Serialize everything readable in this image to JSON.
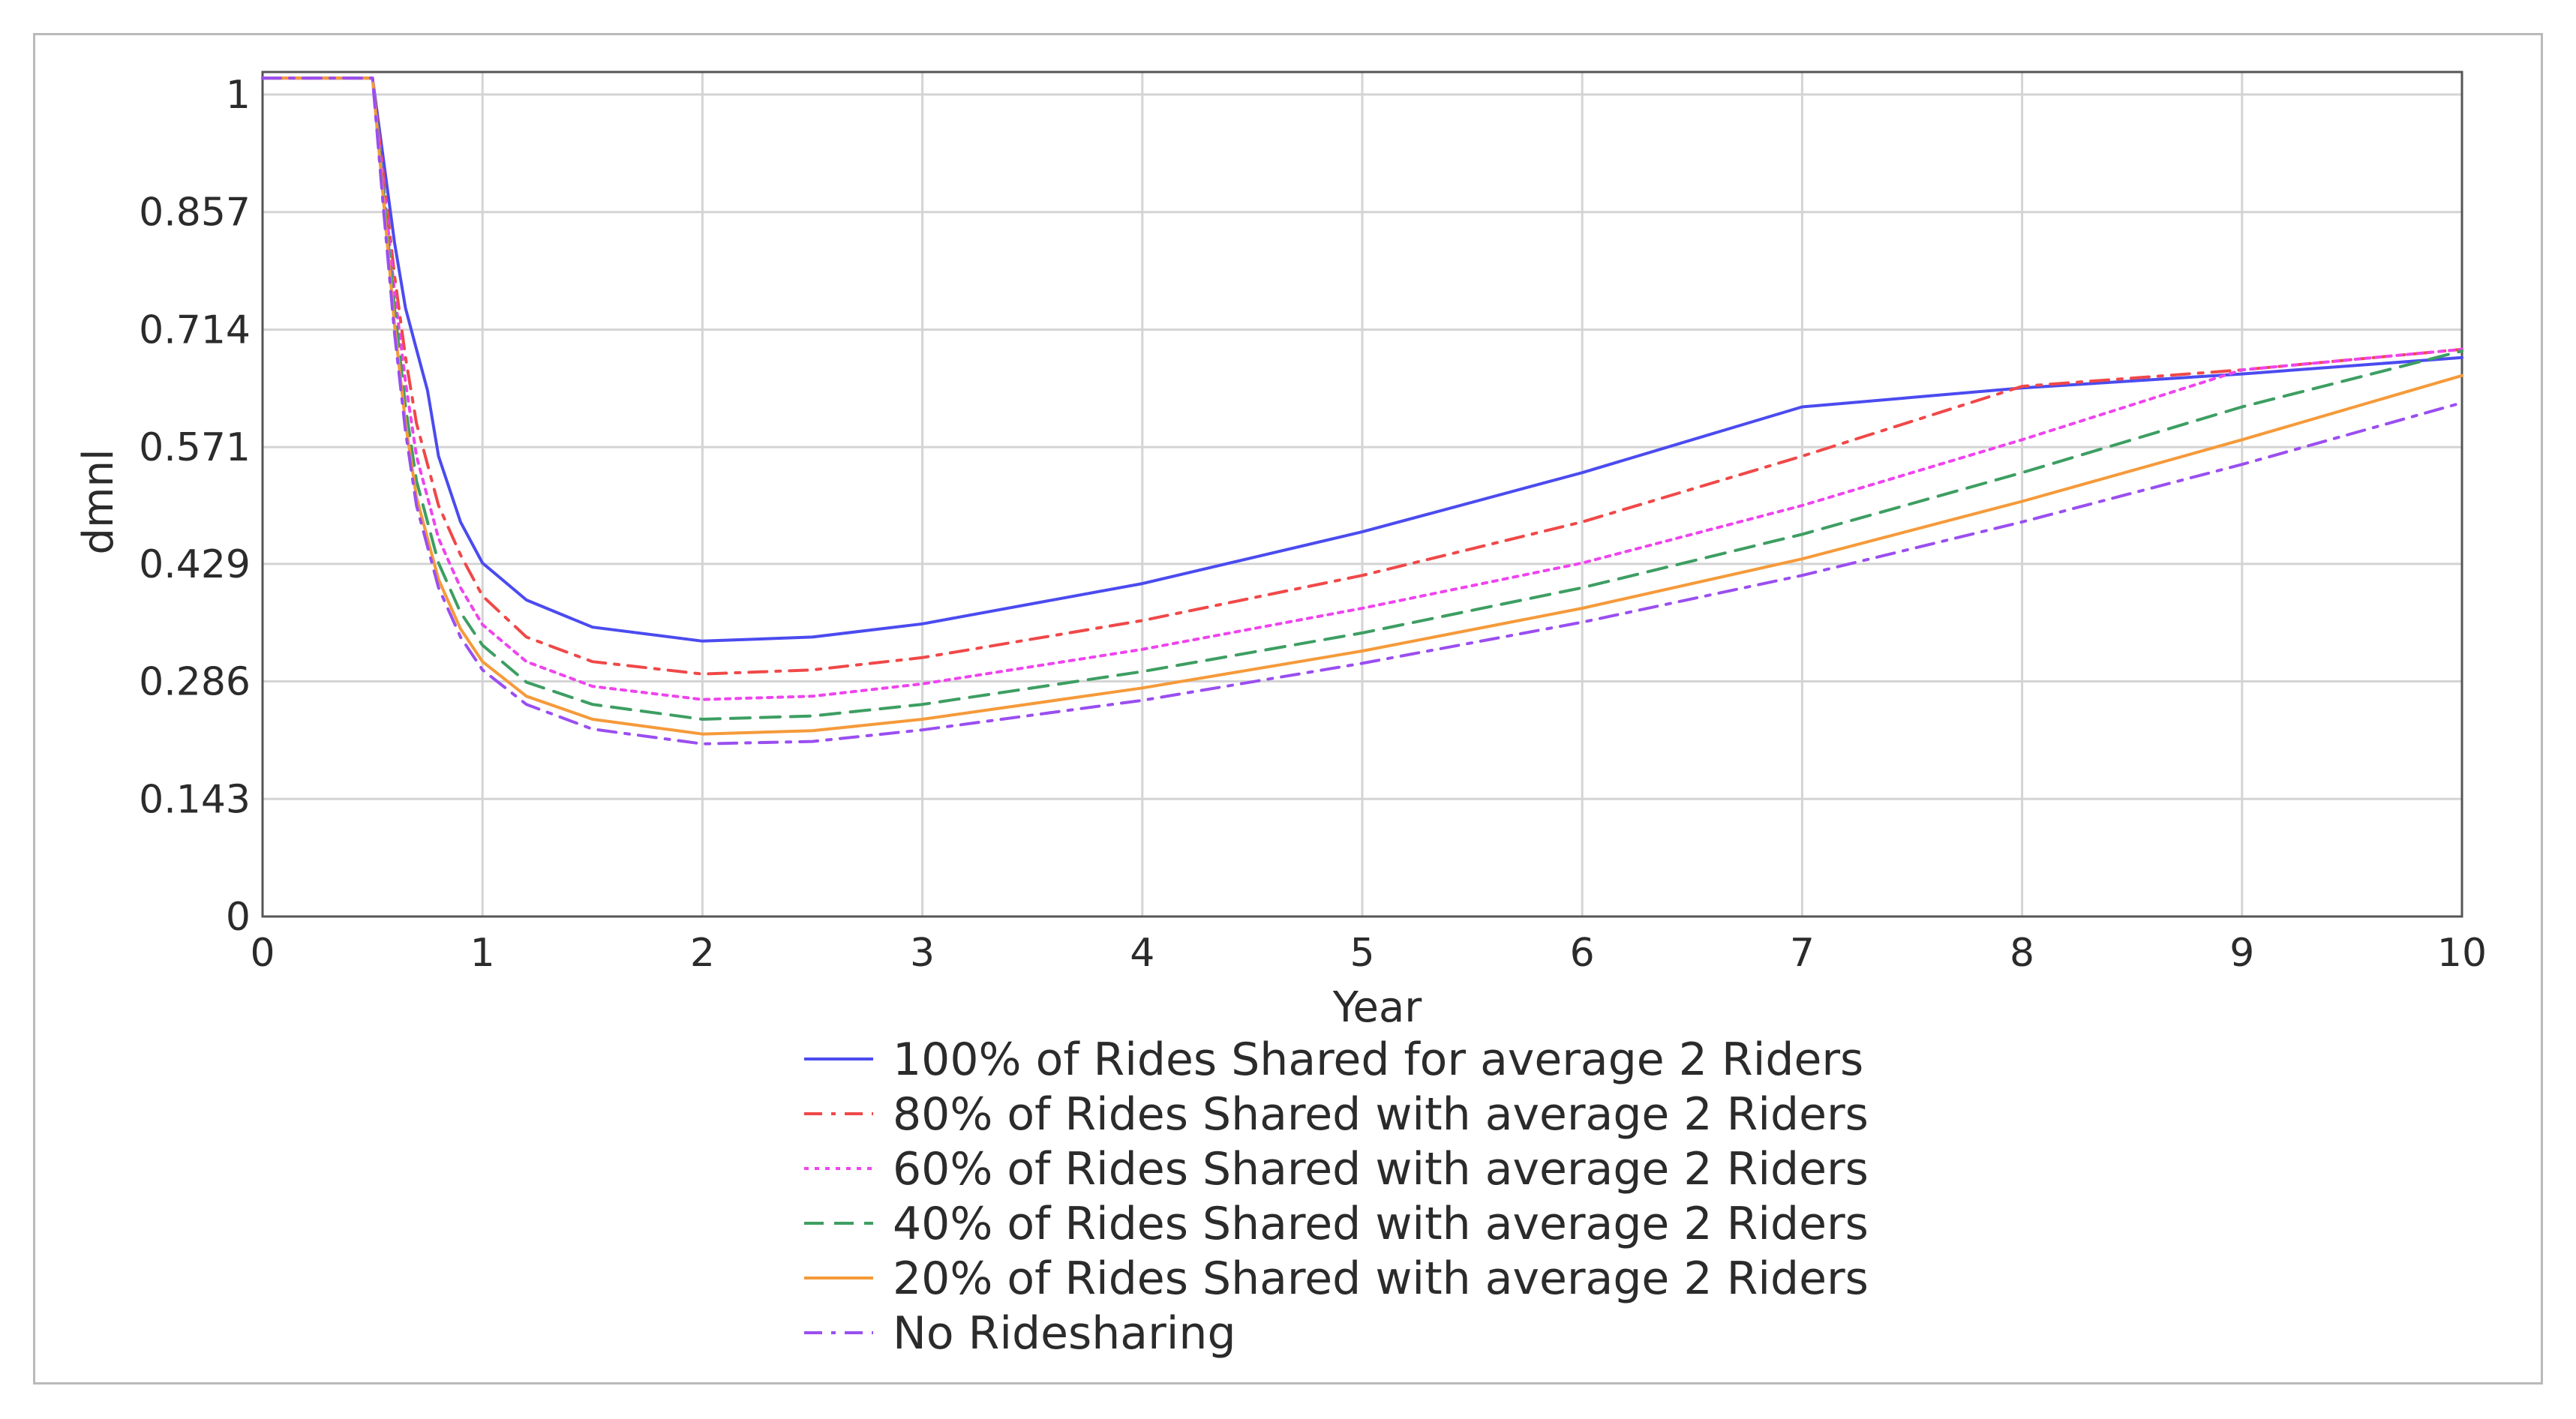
{
  "chart_data": {
    "type": "line",
    "xlabel": "Year",
    "ylabel": "dmnl",
    "xlim": [
      0,
      10
    ],
    "ylim": [
      0,
      1
    ],
    "x_ticks": [
      0,
      1,
      2,
      3,
      4,
      5,
      6,
      7,
      8,
      9,
      10
    ],
    "x_tick_labels": [
      "0",
      "1",
      "2",
      "3",
      "4",
      "5",
      "6",
      "7",
      "8",
      "9",
      "10"
    ],
    "y_ticks": [
      0,
      0.143,
      0.286,
      0.429,
      0.571,
      0.714,
      0.857,
      1
    ],
    "y_tick_labels": [
      "0",
      "0.143",
      "0.286",
      "0.429",
      "0.571",
      "0.714",
      "0.857",
      "1"
    ],
    "grid": true,
    "legend_position": "bottom-center",
    "series": [
      {
        "name": "100% of Rides Shared for average 2 Riders",
        "color": "#4b4bf0",
        "dash": "solid",
        "points": [
          [
            0,
            1.02
          ],
          [
            0.5,
            1.02
          ],
          [
            0.55,
            0.92
          ],
          [
            0.6,
            0.82
          ],
          [
            0.65,
            0.74
          ],
          [
            0.7,
            0.69
          ],
          [
            0.75,
            0.64
          ],
          [
            0.8,
            0.56
          ],
          [
            0.9,
            0.48
          ],
          [
            1.0,
            0.43
          ],
          [
            1.2,
            0.385
          ],
          [
            1.5,
            0.352
          ],
          [
            2.0,
            0.335
          ],
          [
            2.5,
            0.34
          ],
          [
            3.0,
            0.356
          ],
          [
            4.0,
            0.405
          ],
          [
            5.0,
            0.468
          ],
          [
            6.0,
            0.54
          ],
          [
            7.0,
            0.62
          ],
          [
            8.0,
            0.643
          ],
          [
            9.0,
            0.66
          ],
          [
            10.0,
            0.68
          ]
        ]
      },
      {
        "name": "80% of Rides Shared with average 2 Riders",
        "color": "#f04848",
        "dash": "dashdot",
        "points": [
          [
            0,
            1.02
          ],
          [
            0.5,
            1.02
          ],
          [
            0.55,
            0.9
          ],
          [
            0.6,
            0.78
          ],
          [
            0.65,
            0.68
          ],
          [
            0.7,
            0.6
          ],
          [
            0.8,
            0.5
          ],
          [
            0.9,
            0.44
          ],
          [
            1.0,
            0.39
          ],
          [
            1.2,
            0.34
          ],
          [
            1.5,
            0.31
          ],
          [
            2.0,
            0.295
          ],
          [
            2.5,
            0.3
          ],
          [
            3.0,
            0.315
          ],
          [
            4.0,
            0.36
          ],
          [
            5.0,
            0.415
          ],
          [
            6.0,
            0.48
          ],
          [
            7.0,
            0.56
          ],
          [
            8.0,
            0.645
          ],
          [
            9.0,
            0.665
          ],
          [
            10.0,
            0.69
          ]
        ]
      },
      {
        "name": "60% of Rides Shared with average 2 Riders",
        "color": "#ee44ee",
        "dash": "dotted",
        "points": [
          [
            0,
            1.02
          ],
          [
            0.5,
            1.02
          ],
          [
            0.55,
            0.89
          ],
          [
            0.6,
            0.76
          ],
          [
            0.65,
            0.65
          ],
          [
            0.7,
            0.56
          ],
          [
            0.8,
            0.46
          ],
          [
            0.9,
            0.4
          ],
          [
            1.0,
            0.355
          ],
          [
            1.2,
            0.31
          ],
          [
            1.5,
            0.28
          ],
          [
            2.0,
            0.264
          ],
          [
            2.5,
            0.268
          ],
          [
            3.0,
            0.283
          ],
          [
            4.0,
            0.325
          ],
          [
            5.0,
            0.375
          ],
          [
            6.0,
            0.43
          ],
          [
            7.0,
            0.5
          ],
          [
            8.0,
            0.58
          ],
          [
            9.0,
            0.665
          ],
          [
            10.0,
            0.69
          ]
        ]
      },
      {
        "name": "40% of Rides Shared with average 2 Riders",
        "color": "#3d9e62",
        "dash": "dashed",
        "points": [
          [
            0,
            1.02
          ],
          [
            0.5,
            1.02
          ],
          [
            0.55,
            0.88
          ],
          [
            0.6,
            0.74
          ],
          [
            0.65,
            0.62
          ],
          [
            0.7,
            0.53
          ],
          [
            0.8,
            0.43
          ],
          [
            0.9,
            0.37
          ],
          [
            1.0,
            0.33
          ],
          [
            1.2,
            0.285
          ],
          [
            1.5,
            0.258
          ],
          [
            2.0,
            0.24
          ],
          [
            2.5,
            0.244
          ],
          [
            3.0,
            0.258
          ],
          [
            4.0,
            0.298
          ],
          [
            5.0,
            0.345
          ],
          [
            6.0,
            0.4
          ],
          [
            7.0,
            0.465
          ],
          [
            8.0,
            0.54
          ],
          [
            9.0,
            0.62
          ],
          [
            10.0,
            0.688
          ]
        ]
      },
      {
        "name": "20% of Rides Shared with average 2 Riders",
        "color": "#f59a3a",
        "dash": "solid",
        "points": [
          [
            0,
            1.02
          ],
          [
            0.5,
            1.02
          ],
          [
            0.55,
            0.87
          ],
          [
            0.6,
            0.72
          ],
          [
            0.65,
            0.6
          ],
          [
            0.7,
            0.51
          ],
          [
            0.8,
            0.41
          ],
          [
            0.9,
            0.35
          ],
          [
            1.0,
            0.31
          ],
          [
            1.2,
            0.268
          ],
          [
            1.5,
            0.24
          ],
          [
            2.0,
            0.222
          ],
          [
            2.5,
            0.226
          ],
          [
            3.0,
            0.24
          ],
          [
            4.0,
            0.278
          ],
          [
            5.0,
            0.323
          ],
          [
            6.0,
            0.375
          ],
          [
            7.0,
            0.435
          ],
          [
            8.0,
            0.505
          ],
          [
            9.0,
            0.58
          ],
          [
            10.0,
            0.658
          ]
        ]
      },
      {
        "name": "No Ridesharing",
        "color": "#9a4ef0",
        "dash": "dashdot",
        "points": [
          [
            0,
            1.02
          ],
          [
            0.5,
            1.02
          ],
          [
            0.55,
            0.86
          ],
          [
            0.6,
            0.71
          ],
          [
            0.65,
            0.59
          ],
          [
            0.7,
            0.5
          ],
          [
            0.8,
            0.4
          ],
          [
            0.9,
            0.34
          ],
          [
            1.0,
            0.3
          ],
          [
            1.2,
            0.258
          ],
          [
            1.5,
            0.228
          ],
          [
            2.0,
            0.21
          ],
          [
            2.5,
            0.213
          ],
          [
            3.0,
            0.227
          ],
          [
            4.0,
            0.263
          ],
          [
            5.0,
            0.308
          ],
          [
            6.0,
            0.358
          ],
          [
            7.0,
            0.415
          ],
          [
            8.0,
            0.48
          ],
          [
            9.0,
            0.55
          ],
          [
            10.0,
            0.625
          ]
        ]
      }
    ]
  }
}
